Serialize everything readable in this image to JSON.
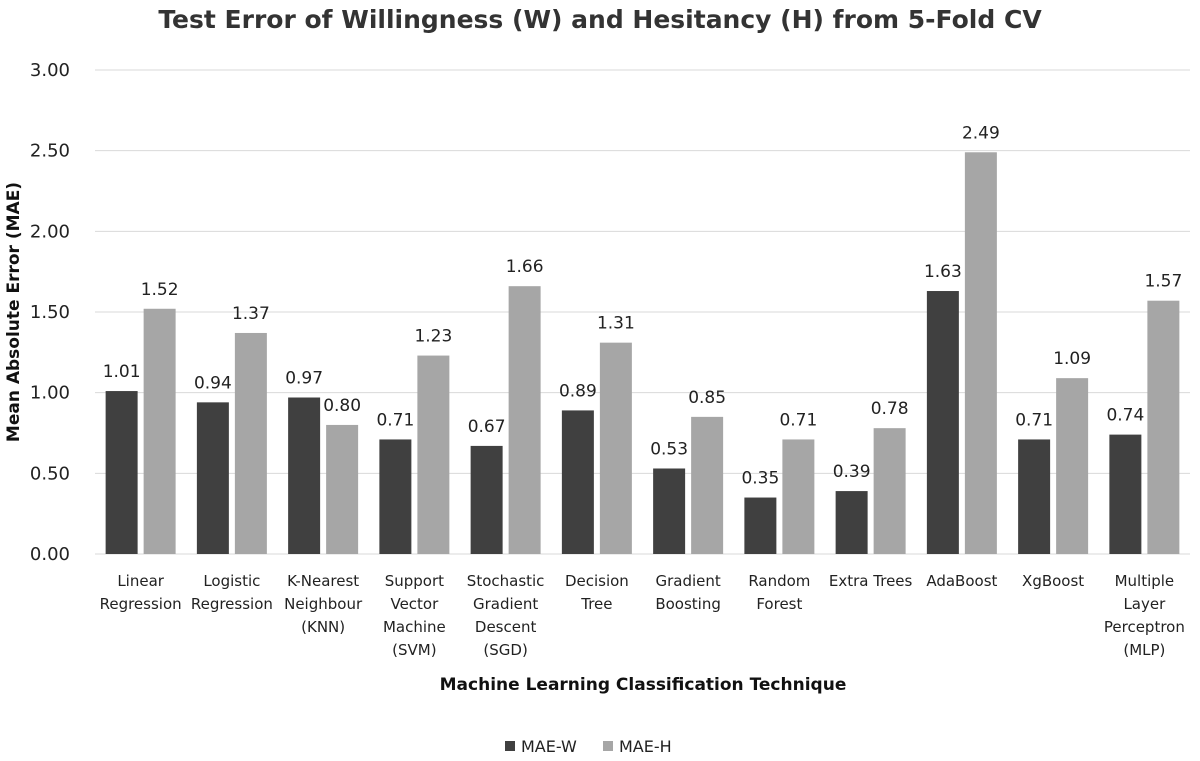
{
  "chart_data": {
    "type": "bar",
    "title": "Test Error of Willingness (W) and Hesitancy (H) from 5-Fold CV",
    "xlabel": "Machine Learning Classification Technique",
    "ylabel": "Mean Absolute Error (MAE)",
    "ylim": [
      0,
      3
    ],
    "yticks": [
      "0.00",
      "0.50",
      "1.00",
      "1.50",
      "2.00",
      "2.50",
      "3.00"
    ],
    "grid": true,
    "legend_position": "bottom",
    "categories": [
      [
        "Linear",
        "Regression"
      ],
      [
        "Logistic",
        "Regression"
      ],
      [
        "K-Nearest",
        "Neighbour",
        "(KNN)"
      ],
      [
        "Support",
        "Vector",
        "Machine",
        "(SVM)"
      ],
      [
        "Stochastic",
        "Gradient",
        "Descent",
        "(SGD)"
      ],
      [
        "Decision",
        "Tree"
      ],
      [
        "Gradient",
        "Boosting"
      ],
      [
        "Random",
        "Forest"
      ],
      [
        "Extra Trees"
      ],
      [
        "AdaBoost"
      ],
      [
        "XgBoost"
      ],
      [
        "Multiple",
        "Layer",
        "Perceptron",
        "(MLP)"
      ]
    ],
    "series": [
      {
        "name": "MAE-W",
        "color": "#404040",
        "values": [
          1.01,
          0.94,
          0.97,
          0.71,
          0.67,
          0.89,
          0.53,
          0.35,
          0.39,
          1.63,
          0.71,
          0.74
        ],
        "labels": [
          "1.01",
          "0.94",
          "0.97",
          "0.71",
          "0.67",
          "0.89",
          "0.53",
          "0.35",
          "0.39",
          "1.63",
          "0.71",
          "0.74"
        ]
      },
      {
        "name": "MAE-H",
        "color": "#a6a6a6",
        "values": [
          1.52,
          1.37,
          0.8,
          1.23,
          1.66,
          1.31,
          0.85,
          0.71,
          0.78,
          2.49,
          1.09,
          1.57
        ],
        "labels": [
          "1.52",
          "1.37",
          "0.80",
          "1.23",
          "1.66",
          "1.31",
          "0.85",
          "0.71",
          "0.78",
          "2.49",
          "1.09",
          "1.57"
        ]
      }
    ]
  }
}
